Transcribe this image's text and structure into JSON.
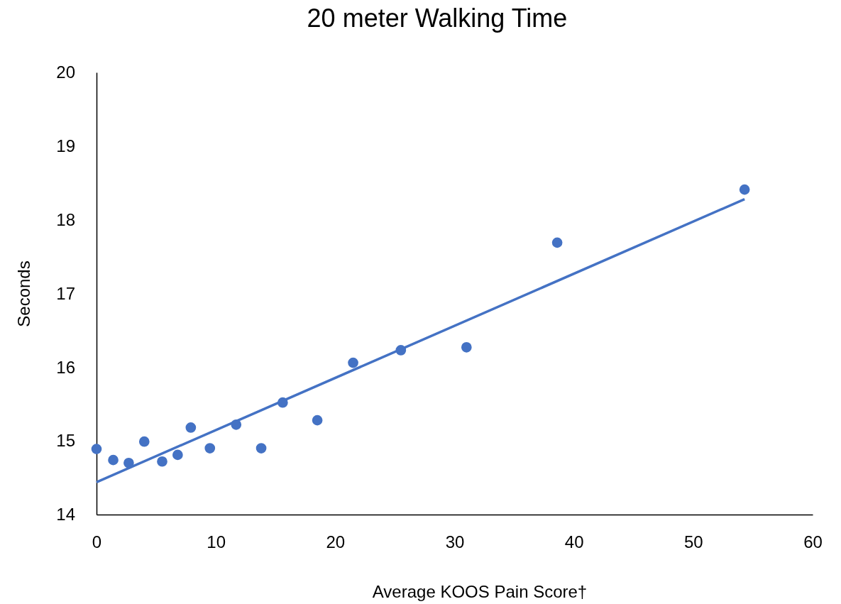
{
  "chart_data": {
    "type": "scatter",
    "title": "20 meter Walking Time",
    "xlabel": "Average KOOS Pain Score†",
    "ylabel": "Seconds",
    "xlim": [
      0,
      60
    ],
    "xticks": [
      0,
      10,
      20,
      30,
      40,
      50,
      60
    ],
    "ylim": [
      14,
      20
    ],
    "yticks": [
      14,
      15,
      16,
      17,
      18,
      19,
      20
    ],
    "grid": false,
    "series": [
      {
        "marker": "circle",
        "color": "#4472c4",
        "x": [
          0,
          1.4,
          2.7,
          4.0,
          5.5,
          6.8,
          7.9,
          9.5,
          11.7,
          13.8,
          15.6,
          18.5,
          21.5,
          25.5,
          31.0,
          38.6,
          54.3
        ],
        "values": [
          14.89,
          14.74,
          14.7,
          14.99,
          14.72,
          14.81,
          15.18,
          14.9,
          15.22,
          14.9,
          15.52,
          15.28,
          16.06,
          16.23,
          16.27,
          17.69,
          18.41
        ]
      },
      {
        "type": "line",
        "color": "#4472c4",
        "x": [
          0,
          54.3
        ],
        "values": [
          14.44,
          18.28
        ]
      }
    ]
  }
}
